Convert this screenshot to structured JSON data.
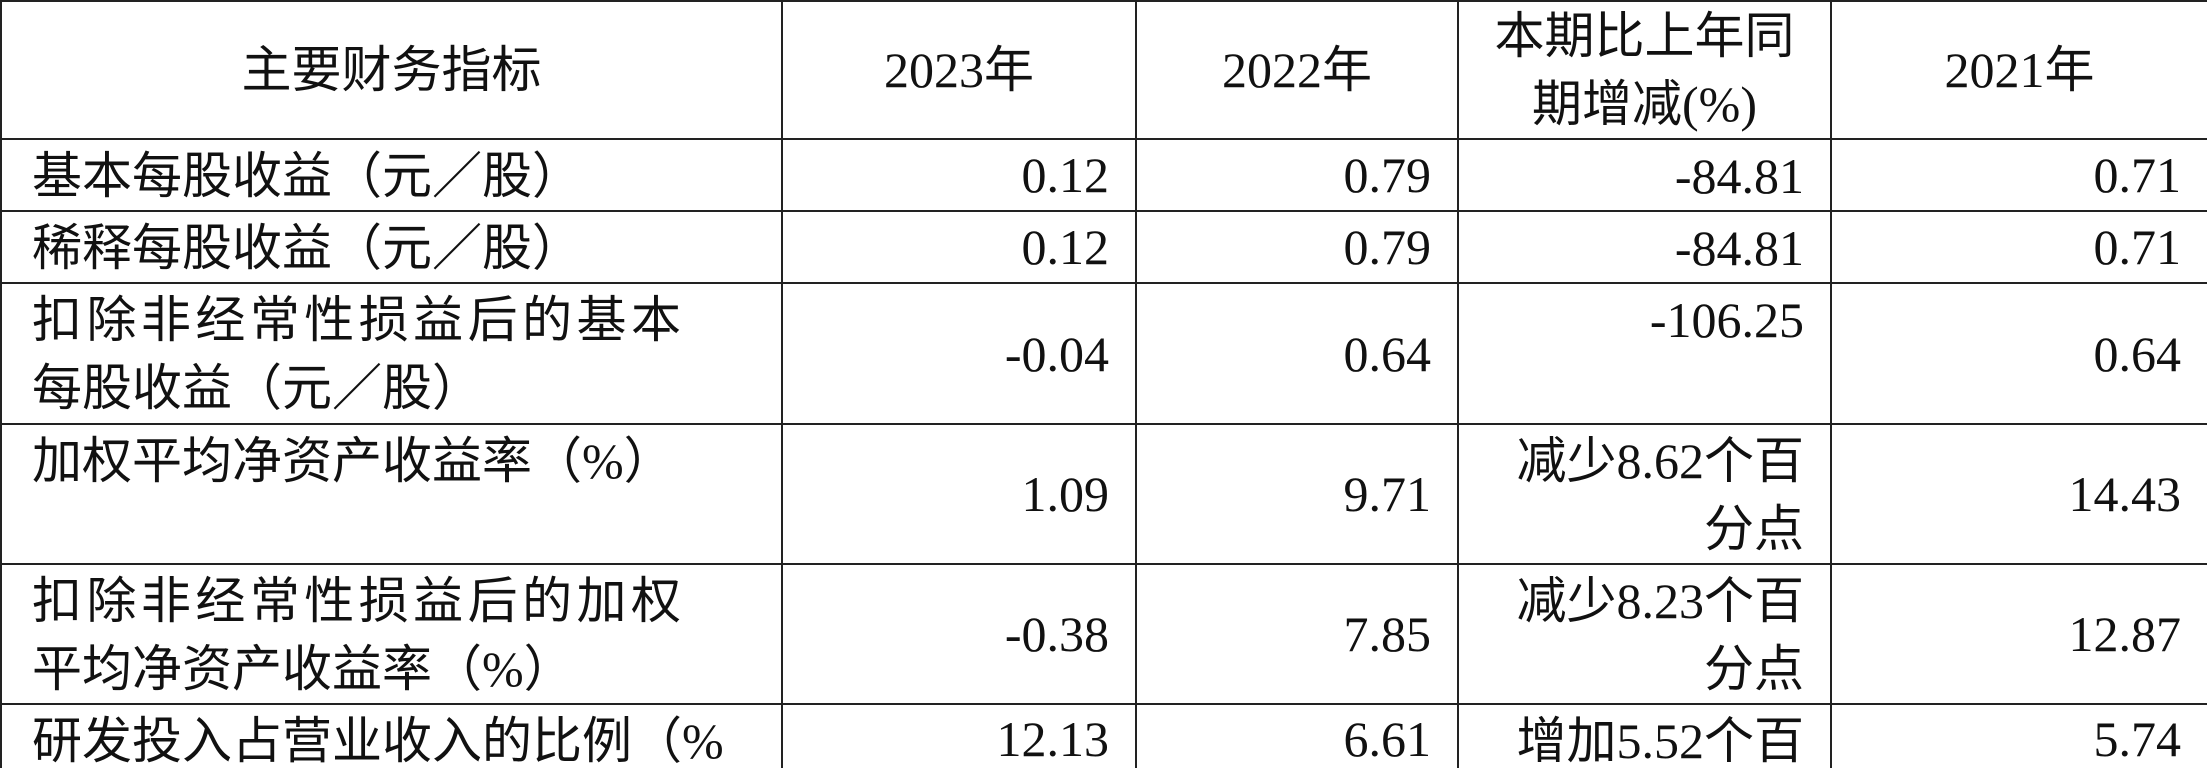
{
  "table": {
    "header": [
      "主要财务指标",
      "2023年",
      "2022年",
      "本期比上年同期增减(%)",
      "2021年"
    ],
    "rows": [
      [
        "基本每股收益（元／股）",
        "0.12",
        "0.79",
        "-84.81",
        "0.71"
      ],
      [
        "稀释每股收益（元／股）",
        "0.12",
        "0.79",
        "-84.81",
        "0.71"
      ],
      [
        "扣除非经常性损益后的基本每股收益（元／股）",
        "-0.04",
        "0.64",
        "-106.25",
        "0.64"
      ],
      [
        "加权平均净资产收益率（%）",
        "1.09",
        "9.71",
        "减少8.62个百分点",
        "14.43"
      ],
      [
        "扣除非经常性损益后的加权平均净资产收益率（%）",
        "-0.38",
        "7.85",
        "减少8.23个百分点",
        "12.87"
      ],
      [
        "研发投入占营业收入的比例（%",
        "12.13",
        "6.61",
        "增加5.52个百",
        "5.74"
      ]
    ]
  }
}
